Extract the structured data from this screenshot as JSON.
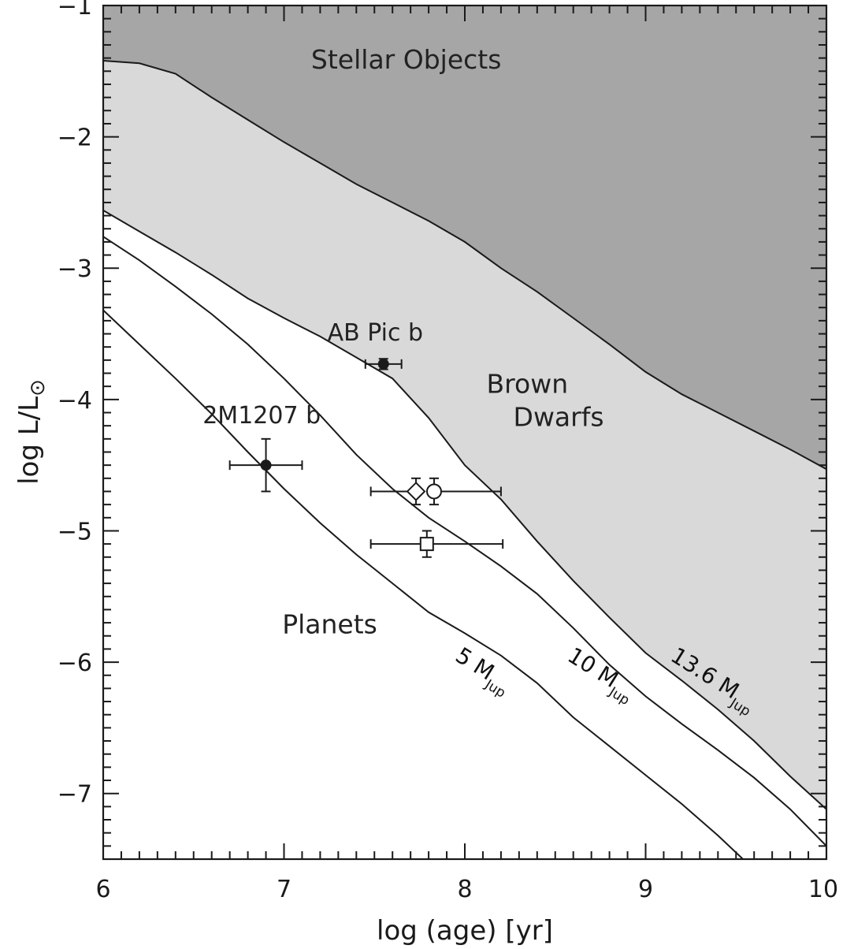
{
  "chart_data": {
    "type": "line",
    "xlabel": "log (age) [yr]",
    "ylabel_main": "log L/L",
    "ylabel_symbol": "⊙",
    "xlim": [
      6,
      10
    ],
    "ylim": [
      -7.5,
      -1
    ],
    "x_ticks": [
      6,
      7,
      8,
      9,
      10
    ],
    "x_tick_labels": [
      "6",
      "7",
      "8",
      "9",
      "10"
    ],
    "y_ticks": [
      -1,
      -2,
      -3,
      -4,
      -5,
      -6,
      -7
    ],
    "y_tick_labels": [
      "−1",
      "−2",
      "−3",
      "−4",
      "−5",
      "−6",
      "−7"
    ],
    "region_colors": {
      "stellar": "#a6a6a6",
      "brown_dwarf": "#d9d9d9",
      "planet": "#ffffff"
    },
    "regions": [
      {
        "key": "stellar",
        "label": "Stellar Objects",
        "pos": [
          7.15,
          -1.48
        ]
      },
      {
        "key": "brown_dwarf",
        "label_line1": "Brown",
        "label_line2": "Dwarfs",
        "pos": [
          8.12,
          -3.95
        ]
      },
      {
        "key": "planet",
        "label": "Planets",
        "pos": [
          6.99,
          -5.78
        ]
      }
    ],
    "boundary_stellar": {
      "x": [
        6.0,
        6.2,
        6.4,
        6.6,
        6.8,
        7.0,
        7.2,
        7.4,
        7.6,
        7.8,
        8.0,
        8.2,
        8.4,
        8.6,
        8.8,
        9.0,
        9.2,
        9.4,
        9.6,
        9.8,
        10.0
      ],
      "y": [
        -1.42,
        -1.44,
        -1.52,
        -1.7,
        -1.87,
        -2.04,
        -2.2,
        -2.36,
        -2.5,
        -2.64,
        -2.8,
        -3.0,
        -3.18,
        -3.38,
        -3.58,
        -3.79,
        -3.96,
        -4.1,
        -4.24,
        -4.38,
        -4.53
      ]
    },
    "series": [
      {
        "name": "13.6 M",
        "sub": "Jup",
        "label_pos": [
          9.13,
          -5.98
        ],
        "x": [
          6.0,
          6.2,
          6.4,
          6.6,
          6.8,
          7.0,
          7.2,
          7.4,
          7.6,
          7.8,
          8.0,
          8.2,
          8.4,
          8.6,
          8.8,
          9.0,
          9.2,
          9.4,
          9.6,
          9.8,
          10.0
        ],
        "y": [
          -2.56,
          -2.72,
          -2.88,
          -3.05,
          -3.23,
          -3.38,
          -3.52,
          -3.68,
          -3.84,
          -4.14,
          -4.5,
          -4.76,
          -5.08,
          -5.38,
          -5.66,
          -5.93,
          -6.14,
          -6.36,
          -6.6,
          -6.87,
          -7.12
        ]
      },
      {
        "name": "10 M",
        "sub": "Jup",
        "label_pos": [
          8.56,
          -5.98
        ],
        "x": [
          6.0,
          6.2,
          6.4,
          6.6,
          6.8,
          7.0,
          7.2,
          7.4,
          7.6,
          7.8,
          8.0,
          8.2,
          8.4,
          8.6,
          8.8,
          9.0,
          9.2,
          9.4,
          9.6,
          9.8,
          10.0
        ],
        "y": [
          -2.76,
          -2.94,
          -3.14,
          -3.35,
          -3.58,
          -3.84,
          -4.12,
          -4.42,
          -4.68,
          -4.9,
          -5.08,
          -5.27,
          -5.48,
          -5.74,
          -6.02,
          -6.26,
          -6.47,
          -6.67,
          -6.88,
          -7.12,
          -7.4
        ]
      },
      {
        "name": "5 M",
        "sub": "Jup",
        "label_pos": [
          7.94,
          -5.98
        ],
        "x": [
          6.0,
          6.2,
          6.4,
          6.6,
          6.8,
          7.0,
          7.2,
          7.4,
          7.6,
          7.8,
          8.0,
          8.2,
          8.4,
          8.6,
          8.8,
          9.0,
          9.2,
          9.4,
          9.6
        ],
        "y": [
          -3.32,
          -3.58,
          -3.84,
          -4.11,
          -4.4,
          -4.68,
          -4.94,
          -5.18,
          -5.4,
          -5.62,
          -5.78,
          -5.95,
          -6.16,
          -6.42,
          -6.64,
          -6.86,
          -7.08,
          -7.32,
          -7.58
        ]
      }
    ],
    "points": [
      {
        "name": "AB Pic b",
        "label": "AB Pic b",
        "label_pos": [
          7.24,
          -3.55
        ],
        "marker": "filled-circle",
        "x": 7.55,
        "y": -3.73,
        "xerr": [
          0.1,
          0.1
        ],
        "yerr": [
          0.04,
          0.04
        ]
      },
      {
        "name": "2M1207 b",
        "label": "2M1207 b",
        "label_pos": [
          6.55,
          -4.18
        ],
        "marker": "filled-circle",
        "x": 6.9,
        "y": -4.5,
        "xerr": [
          0.2,
          0.2
        ],
        "yerr": [
          0.2,
          0.2
        ]
      },
      {
        "name": "diamond",
        "label": "",
        "marker": "open-diamond",
        "x": 7.73,
        "y": -4.7,
        "xerr": [
          0.25,
          0.0
        ],
        "yerr": [
          0.1,
          0.1
        ]
      },
      {
        "name": "circle",
        "label": "",
        "marker": "open-circle",
        "x": 7.83,
        "y": -4.7,
        "xerr": [
          0.0,
          0.37
        ],
        "yerr": [
          0.1,
          0.1
        ]
      },
      {
        "name": "square",
        "label": "",
        "marker": "open-square",
        "x": 7.79,
        "y": -5.1,
        "xerr": [
          0.31,
          0.42
        ],
        "yerr": [
          0.1,
          0.1
        ]
      }
    ]
  }
}
